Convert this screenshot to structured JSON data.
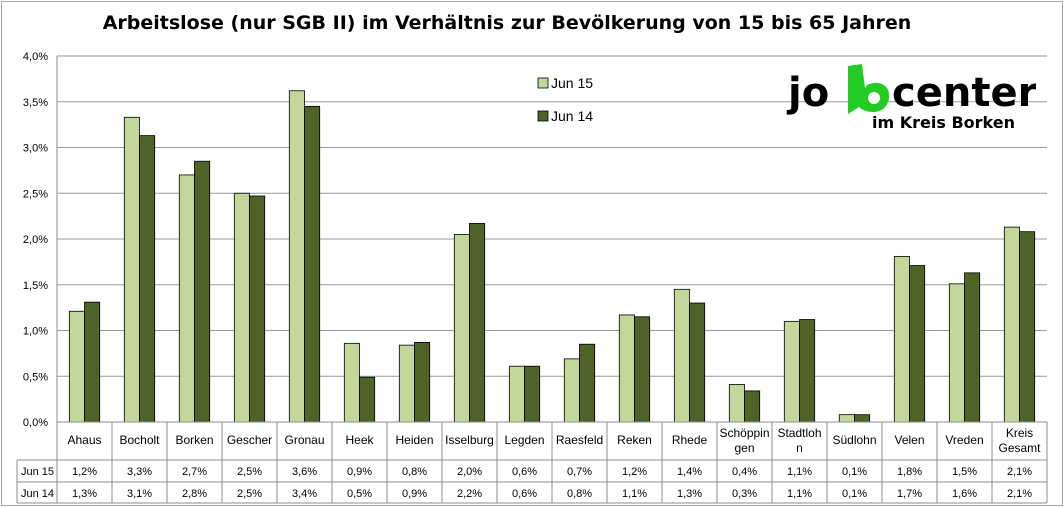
{
  "chart_data": {
    "type": "bar",
    "title": "Arbeitslose (nur SGB II) im Verhältnis zur Bevölkerung von 15 bis 65 Jahren",
    "categories": [
      [
        "Ahaus"
      ],
      [
        "Bocholt"
      ],
      [
        "Borken"
      ],
      [
        "Gescher"
      ],
      [
        "Gronau"
      ],
      [
        "Heek"
      ],
      [
        "Heiden"
      ],
      [
        "Isselburg"
      ],
      [
        "Legden"
      ],
      [
        "Raesfeld"
      ],
      [
        "Reken"
      ],
      [
        "Rhede"
      ],
      [
        "Schöppin",
        "gen"
      ],
      [
        "Stadtloh",
        "n"
      ],
      [
        "Südlohn"
      ],
      [
        "Velen"
      ],
      [
        "Vreden"
      ],
      [
        "Kreis",
        "Gesamt"
      ]
    ],
    "series": [
      {
        "name": "Jun 15",
        "color": "#c4d79b",
        "values": [
          1.21,
          3.33,
          2.7,
          2.5,
          3.62,
          0.86,
          0.84,
          2.05,
          0.61,
          0.69,
          1.17,
          1.45,
          0.41,
          1.1,
          0.08,
          1.81,
          1.51,
          2.13
        ],
        "labels": [
          "1,2%",
          "3,3%",
          "2,7%",
          "2,5%",
          "3,6%",
          "0,9%",
          "0,8%",
          "2,0%",
          "0,6%",
          "0,7%",
          "1,2%",
          "1,4%",
          "0,4%",
          "1,1%",
          "0,1%",
          "1,8%",
          "1,5%",
          "2,1%"
        ]
      },
      {
        "name": "Jun 14",
        "color": "#4f6228",
        "values": [
          1.31,
          3.13,
          2.85,
          2.47,
          3.45,
          0.49,
          0.87,
          2.17,
          0.61,
          0.85,
          1.15,
          1.3,
          0.34,
          1.12,
          0.08,
          1.71,
          1.63,
          2.08
        ],
        "labels": [
          "1,3%",
          "3,1%",
          "2,8%",
          "2,5%",
          "3,4%",
          "0,5%",
          "0,9%",
          "2,2%",
          "0,6%",
          "0,8%",
          "1,1%",
          "1,3%",
          "0,3%",
          "1,1%",
          "0,1%",
          "1,7%",
          "1,6%",
          "2,1%"
        ]
      }
    ],
    "ylim": [
      0,
      4.0
    ],
    "yticks": [
      0,
      0.5,
      1.0,
      1.5,
      2.0,
      2.5,
      3.0,
      3.5,
      4.0
    ],
    "ytick_labels": [
      "0,0%",
      "0,5%",
      "1,0%",
      "1,5%",
      "2,0%",
      "2,5%",
      "3,0%",
      "3,5%",
      "4,0%"
    ],
    "grid": true,
    "legend": "top-center",
    "data_table": true
  },
  "logo": {
    "line1_left": "jo",
    "line1_right": "center",
    "line2": "im Kreis Borken",
    "accent_color": "#22cc22"
  }
}
